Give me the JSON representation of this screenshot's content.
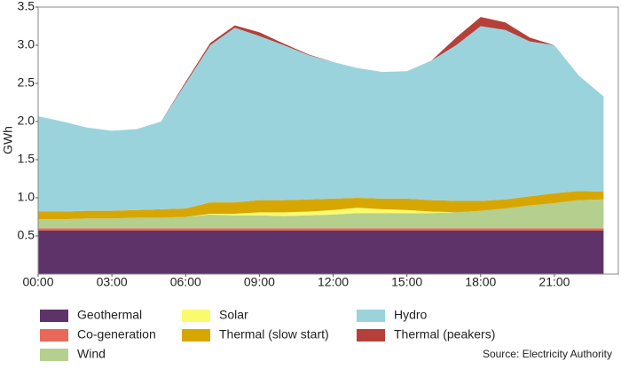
{
  "chart_data": {
    "type": "stacked_area",
    "y_label": "GWh",
    "note": "Source: Electricity Authority",
    "x": [
      0,
      1,
      2,
      3,
      4,
      5,
      6,
      7,
      8,
      9,
      10,
      11,
      12,
      13,
      14,
      15,
      16,
      17,
      18,
      19,
      20,
      21,
      22,
      23
    ],
    "xlim": [
      0,
      23.6
    ],
    "xticks": [
      {
        "value": 0,
        "label": "00:00"
      },
      {
        "value": 3,
        "label": "03:00"
      },
      {
        "value": 6,
        "label": "06:00"
      },
      {
        "value": 9,
        "label": "09:00"
      },
      {
        "value": 12,
        "label": "12:00"
      },
      {
        "value": 15,
        "label": "15:00"
      },
      {
        "value": 18,
        "label": "18:00"
      },
      {
        "value": 21,
        "label": "21:00"
      }
    ],
    "ylim": [
      0,
      3.5
    ],
    "yticks": [
      0.5,
      {
        "value": 1,
        "label": "1.0"
      },
      1.5,
      {
        "value": 2,
        "label": "2.0"
      },
      2.5,
      {
        "value": 3,
        "label": "3.0"
      },
      3.5
    ],
    "series": [
      {
        "name": "Geothermal",
        "color": "#5e3369",
        "values": [
          0.57,
          0.57,
          0.57,
          0.57,
          0.57,
          0.57,
          0.57,
          0.57,
          0.57,
          0.57,
          0.57,
          0.57,
          0.57,
          0.57,
          0.57,
          0.57,
          0.57,
          0.57,
          0.57,
          0.57,
          0.57,
          0.57,
          0.57,
          0.57
        ]
      },
      {
        "name": "Co-generation",
        "color": "#e8695a",
        "values": [
          0.03,
          0.03,
          0.03,
          0.03,
          0.03,
          0.03,
          0.03,
          0.03,
          0.03,
          0.03,
          0.03,
          0.03,
          0.03,
          0.03,
          0.03,
          0.03,
          0.03,
          0.03,
          0.03,
          0.03,
          0.03,
          0.03,
          0.03,
          0.03
        ]
      },
      {
        "name": "Wind",
        "color": "#b5cf8f",
        "values": [
          0.12,
          0.12,
          0.13,
          0.13,
          0.14,
          0.14,
          0.15,
          0.18,
          0.17,
          0.17,
          0.16,
          0.17,
          0.18,
          0.2,
          0.2,
          0.2,
          0.2,
          0.21,
          0.23,
          0.26,
          0.3,
          0.33,
          0.37,
          0.38
        ]
      },
      {
        "name": "Solar",
        "color": "#fafa6e",
        "values": [
          0,
          0,
          0,
          0,
          0,
          0,
          0,
          0.01,
          0.02,
          0.04,
          0.05,
          0.05,
          0.06,
          0.07,
          0.05,
          0.04,
          0.02,
          0,
          0,
          0,
          0,
          0,
          0,
          0
        ]
      },
      {
        "name": "Thermal (slow start)",
        "color": "#d8a600",
        "values": [
          0.1,
          0.1,
          0.1,
          0.1,
          0.1,
          0.11,
          0.11,
          0.15,
          0.15,
          0.16,
          0.16,
          0.16,
          0.15,
          0.13,
          0.14,
          0.15,
          0.15,
          0.15,
          0.13,
          0.12,
          0.12,
          0.13,
          0.12,
          0.1
        ]
      },
      {
        "name": "Hydro",
        "color": "#9bd3dd",
        "values": [
          1.25,
          1.18,
          1.09,
          1.05,
          1.06,
          1.15,
          1.64,
          2.06,
          2.29,
          2.15,
          2.03,
          1.89,
          1.79,
          1.7,
          1.66,
          1.67,
          1.83,
          2.04,
          2.29,
          2.22,
          2.03,
          1.94,
          1.51,
          1.25
        ]
      },
      {
        "name": "Thermal (peakers)",
        "color": "#b5403a",
        "values": [
          0,
          0,
          0,
          0,
          0,
          0,
          0.02,
          0.03,
          0.03,
          0.05,
          0.02,
          0.01,
          0,
          0,
          0,
          0,
          0,
          0.1,
          0.12,
          0.1,
          0.05,
          0,
          0,
          0
        ]
      }
    ]
  }
}
